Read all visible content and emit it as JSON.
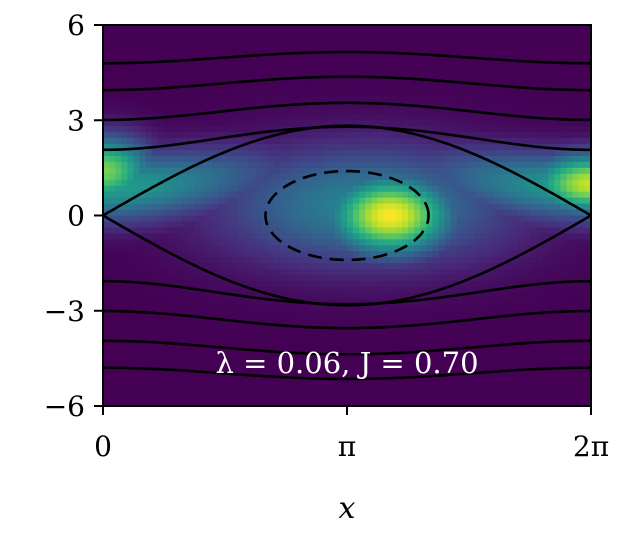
{
  "chart_data": {
    "type": "heatmap",
    "title": "",
    "xlabel": "x",
    "ylabel": "",
    "xlim": [
      0,
      6.2832
    ],
    "ylim": [
      -6,
      6
    ],
    "x_ticks": [
      {
        "value": 0,
        "label": "0"
      },
      {
        "value": 3.1416,
        "label": "π"
      },
      {
        "value": 6.2832,
        "label": "2π"
      }
    ],
    "y_ticks": [
      {
        "value": 6,
        "label": "6"
      },
      {
        "value": 3,
        "label": "3"
      },
      {
        "value": 0,
        "label": "0"
      },
      {
        "value": -3,
        "label": "−3"
      },
      {
        "value": -6,
        "label": "−6"
      }
    ],
    "annotation": "λ = 0.06, J = 0.70",
    "colormap": "viridis",
    "color_range": [
      0,
      1
    ],
    "density_peaks": [
      {
        "x": 3.7,
        "y": 0.0,
        "sx": 0.55,
        "sy": 0.85,
        "weight": 1.0
      },
      {
        "x": 6.2832,
        "y": 1.0,
        "sx": 0.55,
        "sy": 0.65,
        "weight": 0.92
      },
      {
        "x": 0.0,
        "y": 1.4,
        "sx": 0.45,
        "sy": 0.75,
        "weight": 0.8
      }
    ],
    "density_ridge": {
      "center_y": 1.2,
      "amplitude": 1.6,
      "sigma_y": 0.75,
      "weight": 0.55
    },
    "contours": [
      {
        "kind": "separatrix-upper",
        "style": "solid",
        "k": 1.414,
        "sign": 1
      },
      {
        "kind": "separatrix-lower",
        "style": "solid",
        "k": 1.414,
        "sign": -1
      },
      {
        "kind": "rotating",
        "style": "solid",
        "k": 2.2,
        "sign": 1
      },
      {
        "kind": "rotating",
        "style": "solid",
        "k": 3.2,
        "sign": 1
      },
      {
        "kind": "rotating",
        "style": "solid",
        "k": 4.2,
        "sign": 1
      },
      {
        "kind": "rotating",
        "style": "solid",
        "k": 5.1,
        "sign": 1
      },
      {
        "kind": "rotating",
        "style": "solid",
        "k": 2.2,
        "sign": -1
      },
      {
        "kind": "rotating",
        "style": "solid",
        "k": 3.2,
        "sign": -1
      },
      {
        "kind": "rotating",
        "style": "solid",
        "k": 4.2,
        "sign": -1
      },
      {
        "kind": "rotating",
        "style": "solid",
        "k": 5.1,
        "sign": -1
      },
      {
        "kind": "ellipse",
        "style": "dashed",
        "cx": 3.1416,
        "cy": 0.0,
        "rx": 1.05,
        "ry": 1.4
      }
    ]
  }
}
